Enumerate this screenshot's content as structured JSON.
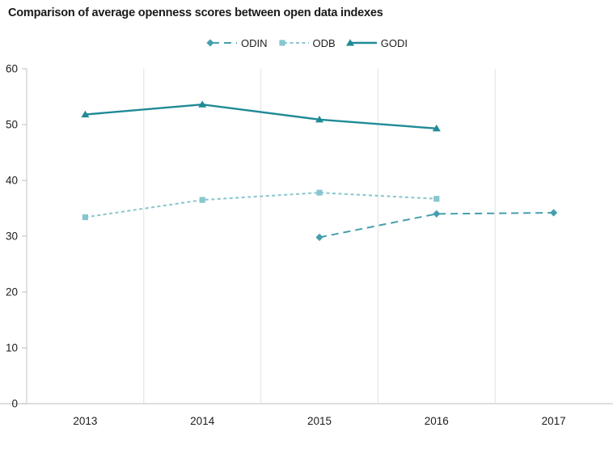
{
  "chart_data": {
    "type": "line",
    "title": "Comparison of average openness scores between open data indexes",
    "xlabel": "",
    "ylabel": "",
    "x_tick_labels": [
      "2013",
      "2014",
      "2015",
      "2016",
      "2017"
    ],
    "y_ticks": [
      0,
      10,
      20,
      30,
      40,
      50,
      60
    ],
    "ylim": [
      0,
      60
    ],
    "grid": "vertical-gridlines-only",
    "legend_position": "top-center",
    "series": [
      {
        "name": "ODIN",
        "marker": "diamond",
        "line_style": "dashed",
        "color": "#459fad",
        "values": [
          null,
          null,
          29.8,
          34.0,
          34.2
        ]
      },
      {
        "name": "ODB",
        "marker": "square",
        "line_style": "short-dash",
        "color": "#87c6ce",
        "values": [
          33.4,
          36.5,
          37.8,
          36.7,
          null
        ]
      },
      {
        "name": "GODI",
        "marker": "triangle",
        "line_style": "solid",
        "color": "#1f8b96",
        "values": [
          51.8,
          53.6,
          50.9,
          49.3,
          null
        ]
      }
    ],
    "colors": {
      "gridline": "#e2e2e2",
      "axis_line": "#d9d9d9",
      "tick_mark": "#cfcfcf",
      "text": "#1d1d1d"
    }
  }
}
